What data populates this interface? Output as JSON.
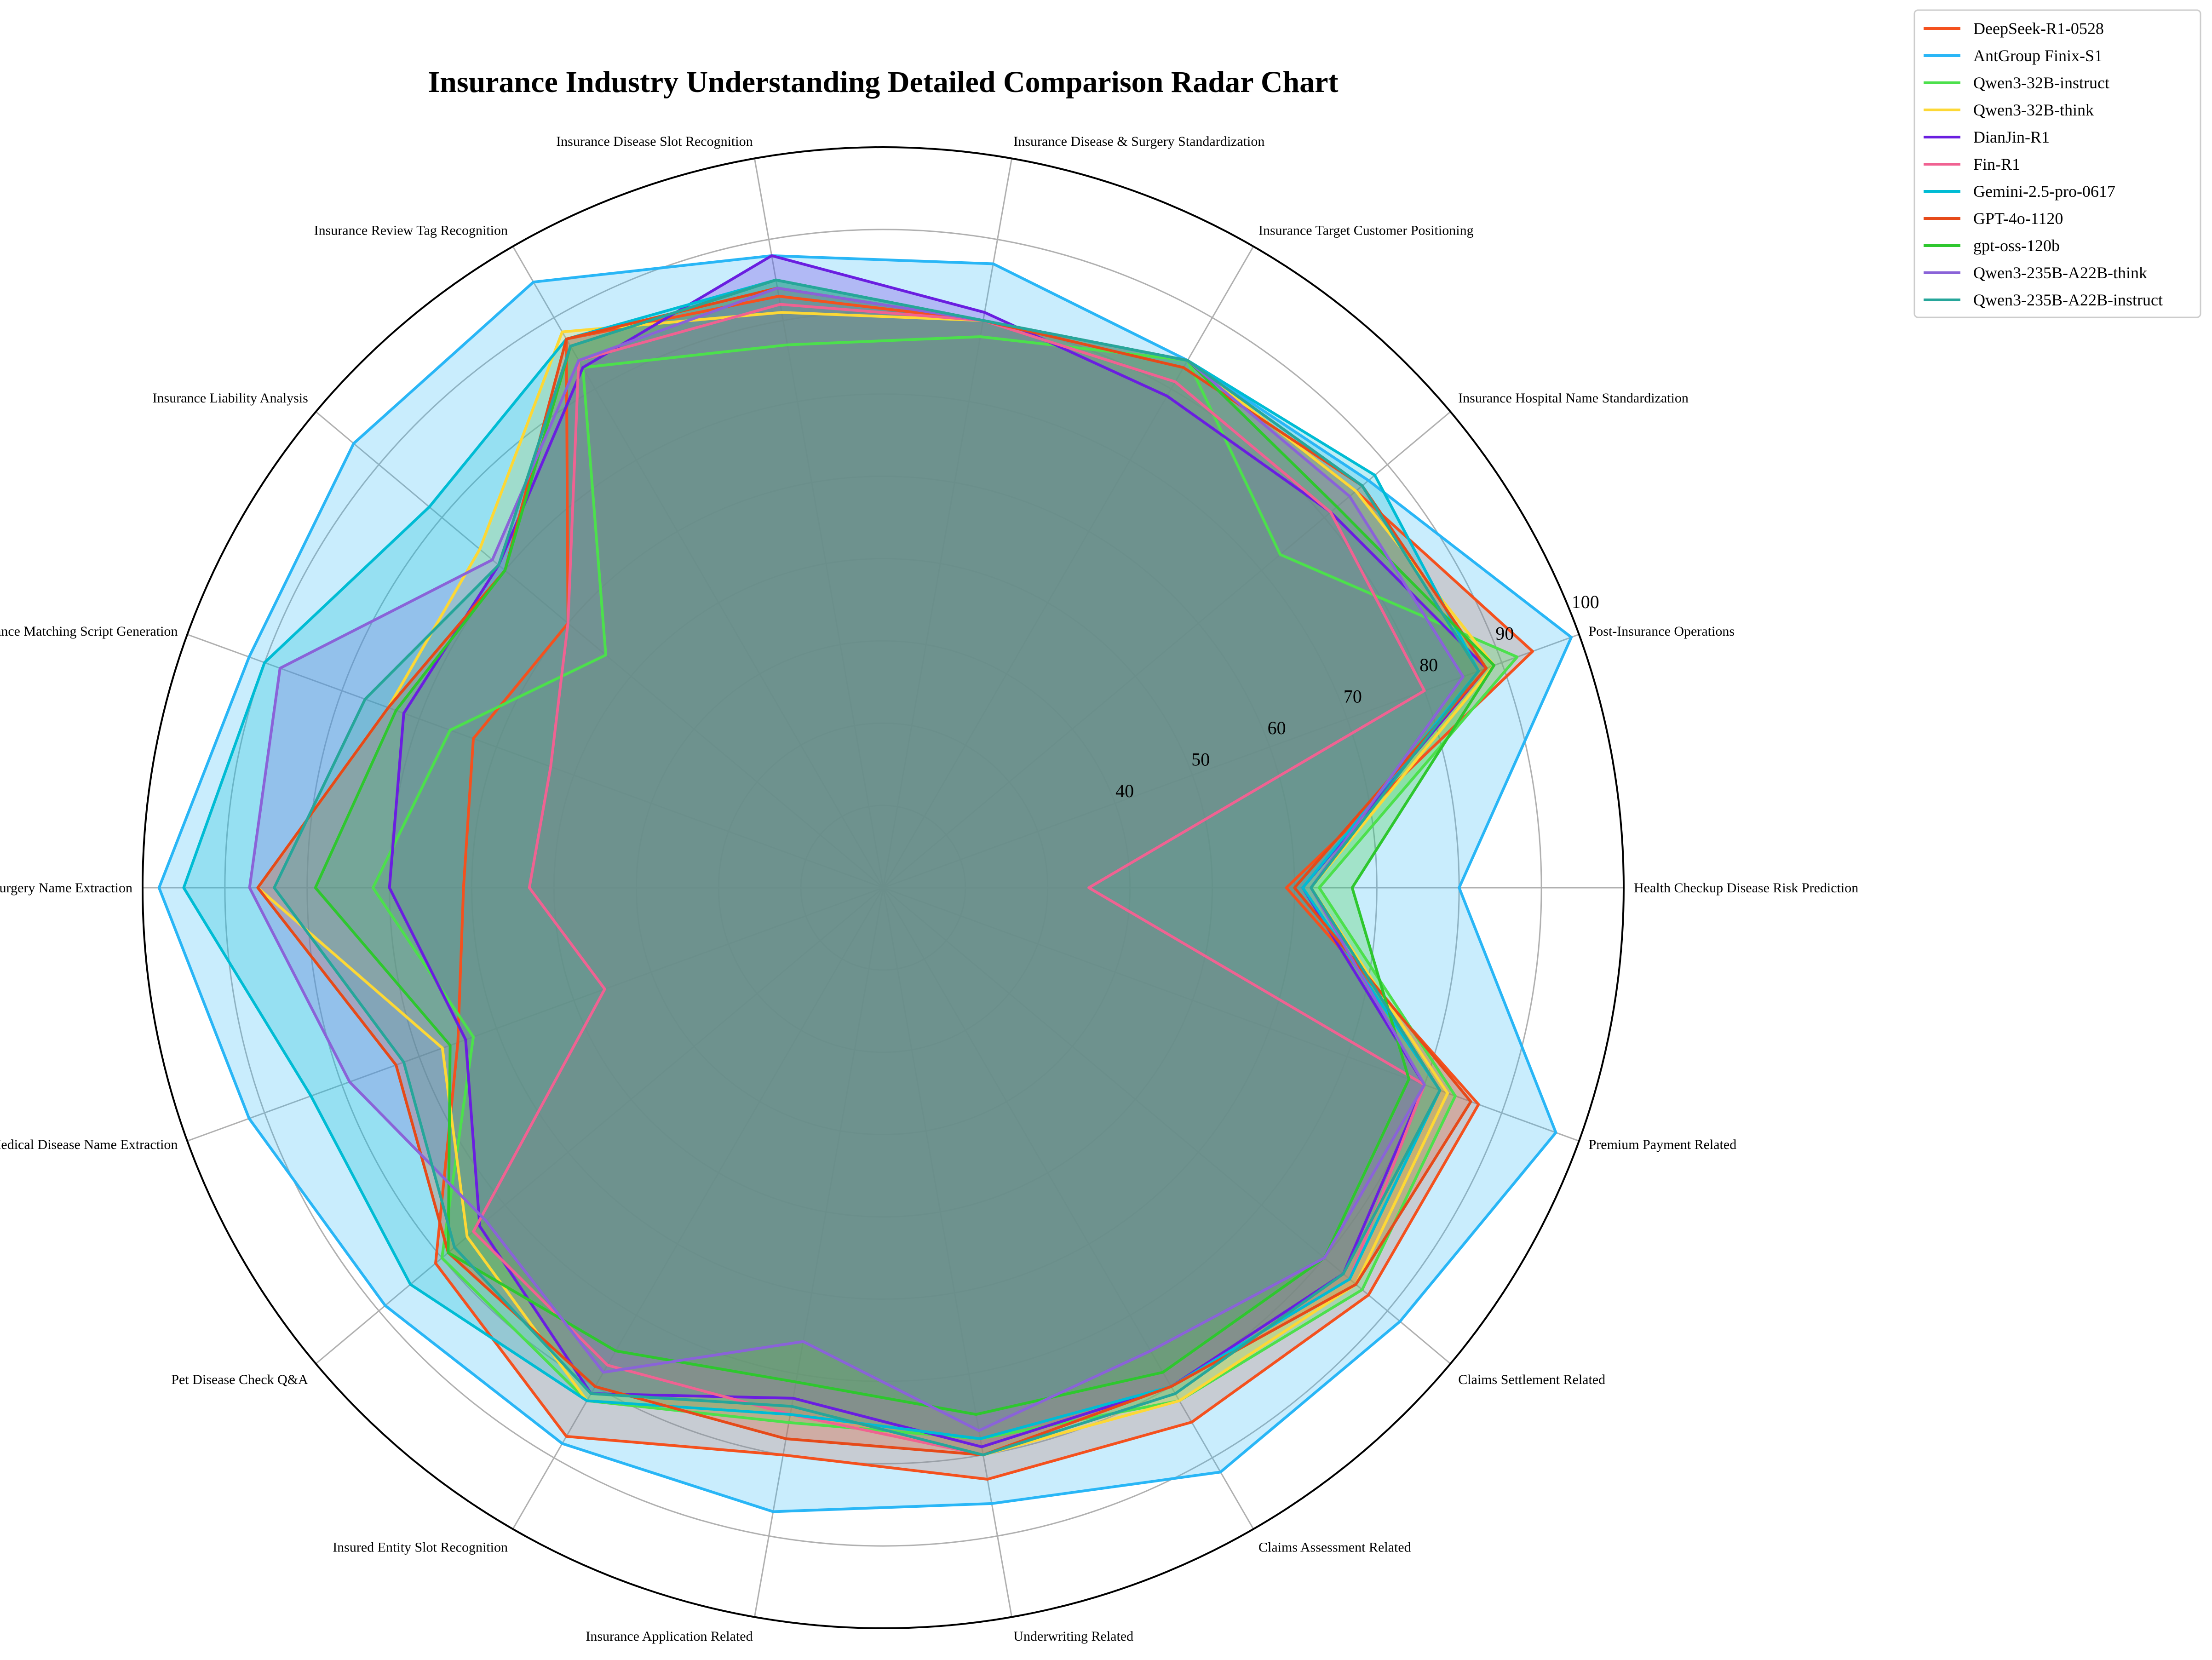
{
  "chart_data": {
    "type": "radar",
    "title": "Insurance Industry Understanding Detailed Comparison Radar Chart",
    "r_ticks": [
      40,
      50,
      60,
      70,
      80,
      90,
      100
    ],
    "r_range": [
      10,
      100
    ],
    "grid": true,
    "legend_position": "top-right outside",
    "categories": [
      "Health Checkup Disease Risk Prediction",
      "Post-Insurance Operations",
      "Insurance Hospital Name Standardization",
      "Insurance Target Customer Positioning",
      "Insurance Disease & Surgery Standardization",
      "Insurance Disease Slot Recognition",
      "Insurance Review Tag Recognition",
      "Insurance Liability Analysis",
      "Insurance Matching Script Generation",
      "Medical Surgery Name Extraction",
      "Medical Disease Name Extraction",
      "Pet Disease Check Q&A",
      "Insured Entity Slot Recognition",
      "Insurance Application Related",
      "Underwriting Related",
      "Claims Assessment Related",
      "Claims Settlement Related",
      "Premium Payment Related"
    ],
    "series": [
      {
        "name": "DeepSeek-R1-0528",
        "color": "#f4511e",
        "values": [
          59,
          94,
          85,
          84,
          80,
          83,
          87,
          60,
          63,
          61,
          65,
          81,
          87,
          80,
          83,
          85,
          87,
          87
        ]
      },
      {
        "name": "AntGroup Finix-S1",
        "color": "#29b6f6",
        "values": [
          80,
          99,
          87,
          84,
          87,
          88,
          95,
          94,
          92,
          98,
          92,
          89,
          88,
          87,
          86,
          92,
          92,
          97
        ]
      },
      {
        "name": "Qwen3-32B-instruct",
        "color": "#4ce04c",
        "values": [
          63,
          92,
          73,
          84,
          78,
          77,
          83,
          54,
          66,
          72,
          63,
          80,
          82,
          76,
          78,
          82,
          86,
          84
        ]
      },
      {
        "name": "Qwen3-32B-think",
        "color": "#fdd835",
        "values": [
          62,
          89,
          85,
          84,
          80,
          81,
          88,
          74,
          74,
          86,
          67,
          76,
          82,
          75,
          80,
          82,
          85,
          83
        ]
      },
      {
        "name": "DianJin-R1",
        "color": "#6a1ee0",
        "values": [
          61,
          88,
          81,
          79,
          81,
          88,
          83,
          71,
          72,
          70,
          64,
          74,
          81,
          73,
          79,
          80,
          83,
          80
        ]
      },
      {
        "name": "Fin-R1",
        "color": "#f06292",
        "values": [
          35,
          80,
          81,
          81,
          80,
          82,
          84,
          60,
          53,
          53,
          46,
          75,
          77,
          75,
          80,
          80,
          84,
          80
        ]
      },
      {
        "name": "Gemini-2.5-pro-0617",
        "color": "#00bcd4",
        "values": [
          61,
          87,
          88,
          84,
          80,
          85,
          87,
          82,
          90,
          95,
          84,
          85,
          82,
          75,
          78,
          80,
          84,
          82
        ]
      },
      {
        "name": "GPT-4o-1120",
        "color": "#e64a19",
        "values": [
          60,
          88,
          86,
          83,
          80,
          84,
          87,
          70,
          74,
          86,
          73,
          79,
          80,
          78,
          80,
          80,
          85,
          86
        ]
      },
      {
        "name": "gpt-oss-120b",
        "color": "#2ec72e",
        "values": [
          67,
          89,
          82,
          84,
          80,
          85,
          86,
          70,
          73,
          79,
          66,
          79,
          75,
          71,
          75,
          78,
          80,
          78
        ]
      },
      {
        "name": "Qwen3-235B-A22B-think",
        "color": "#8a63d8",
        "values": [
          62,
          85,
          84,
          84,
          80,
          84,
          84,
          72,
          88,
          87,
          79,
          73,
          78,
          66,
          77,
          75,
          80,
          80
        ]
      },
      {
        "name": "Qwen3-235B-A22B-instruct",
        "color": "#26a69a",
        "values": [
          62,
          87,
          86,
          84,
          80,
          85,
          86,
          71,
          77,
          84,
          72,
          78,
          81,
          74,
          80,
          81,
          83,
          82
        ]
      }
    ]
  }
}
